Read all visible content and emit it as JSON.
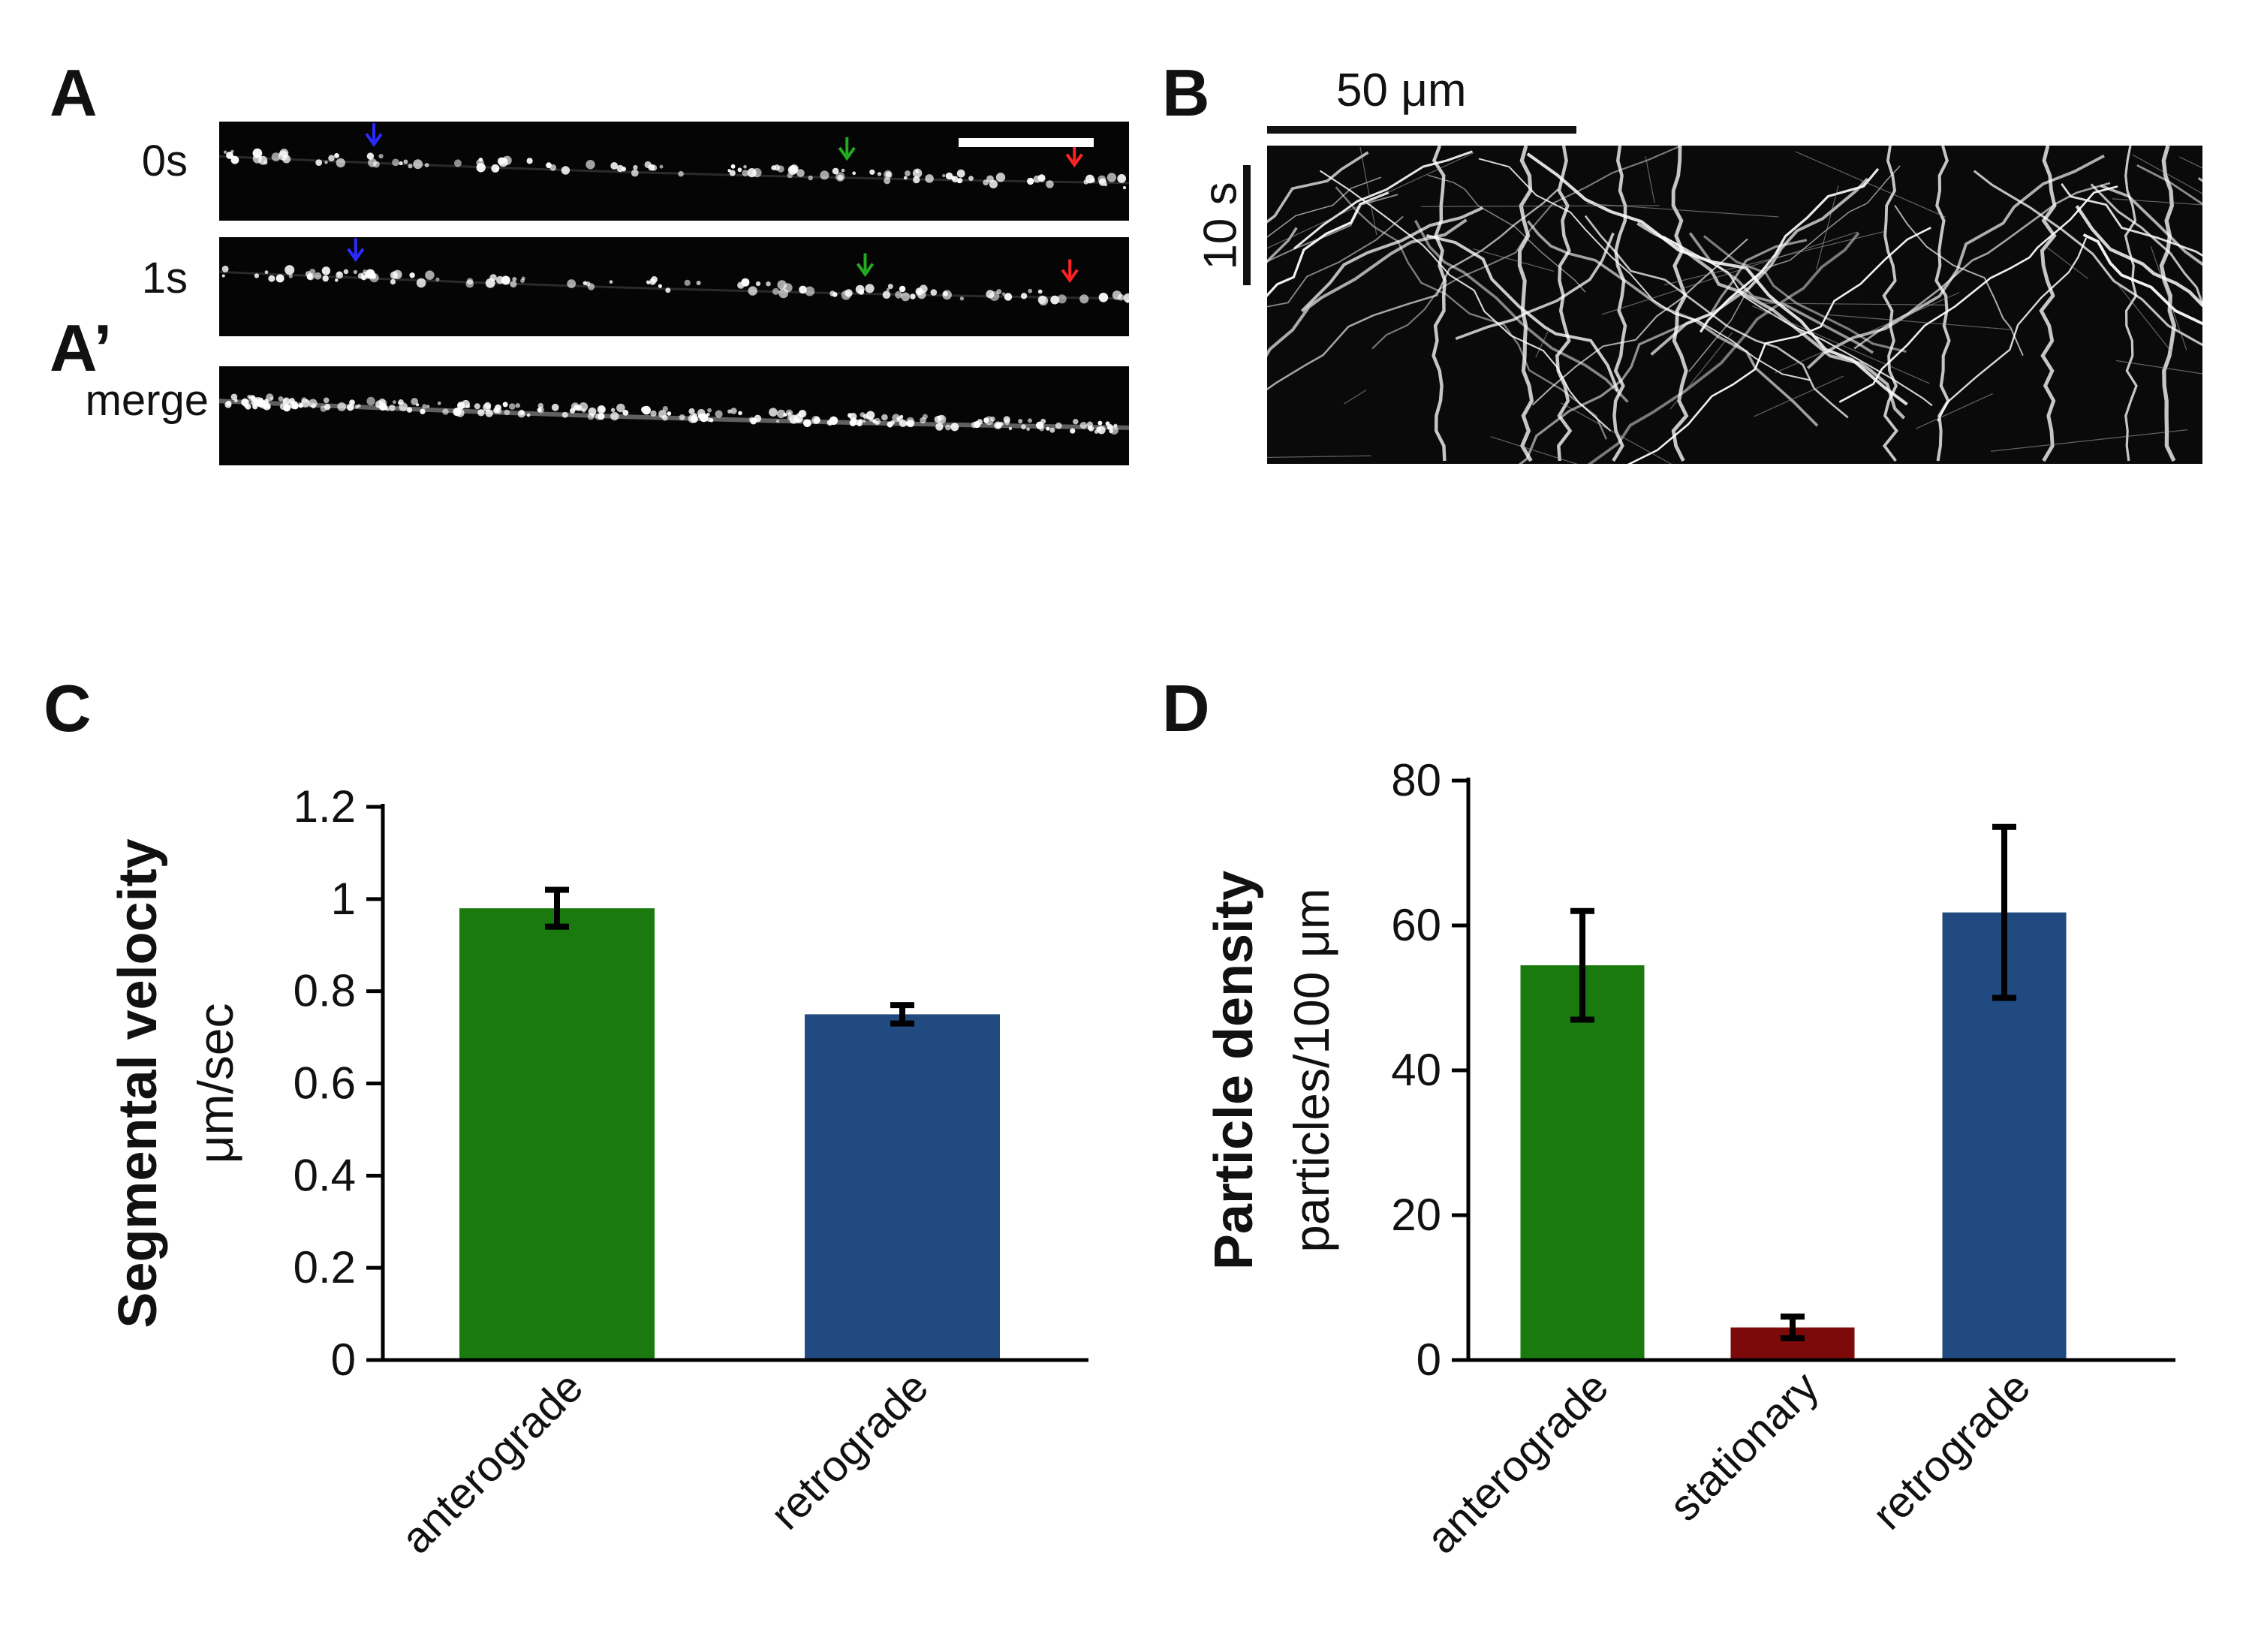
{
  "panels": {
    "a": "A",
    "a_prime": "A’",
    "b": "B",
    "c": "C",
    "d": "D"
  },
  "panel_a": {
    "frames": [
      {
        "label": "0s",
        "arrows": [
          {
            "color": "#2b2bff",
            "pos": 0.17
          },
          {
            "color": "#22aa22",
            "pos": 0.69
          },
          {
            "color": "#ff2222",
            "pos": 0.94
          }
        ]
      },
      {
        "label": "1s",
        "arrows": [
          {
            "color": "#2b2bff",
            "pos": 0.15
          },
          {
            "color": "#22aa22",
            "pos": 0.71
          },
          {
            "color": "#ff2222",
            "pos": 0.935
          }
        ]
      },
      {
        "label": "merge",
        "arrows": []
      }
    ]
  },
  "panel_b": {
    "scale_x_label": "50 μm",
    "scale_y_label": "10 s"
  },
  "chart_data": [
    {
      "type": "bar",
      "panel": "C",
      "ylabel_bold": "Segmental velocity",
      "ylabel_unit": "μm/sec",
      "categories": [
        "anterograde",
        "retrograde"
      ],
      "values": [
        0.98,
        0.75
      ],
      "errors": [
        0.04,
        0.02
      ],
      "colors": [
        "#1a7a0e",
        "#204a80"
      ],
      "ylim": [
        0,
        1.2
      ],
      "yticks": [
        0,
        0.2,
        0.4,
        0.6,
        0.8,
        1,
        1.2
      ],
      "ytick_labels": [
        "0",
        "0.2",
        "0.4",
        "0.6",
        "0.8",
        "1",
        "1.2"
      ]
    },
    {
      "type": "bar",
      "panel": "D",
      "ylabel_bold": "Particle density",
      "ylabel_unit": "particles/100 μm",
      "categories": [
        "anterograde",
        "stationary",
        "retrograde"
      ],
      "values": [
        54.5,
        4.5,
        61.8
      ],
      "errors": [
        7.5,
        1.5,
        11.8
      ],
      "colors": [
        "#1a7a0e",
        "#7d0a0a",
        "#204a80"
      ],
      "ylim": [
        0,
        80
      ],
      "yticks": [
        0,
        20,
        40,
        60,
        80
      ],
      "ytick_labels": [
        "0",
        "20",
        "40",
        "60",
        "80"
      ]
    }
  ]
}
